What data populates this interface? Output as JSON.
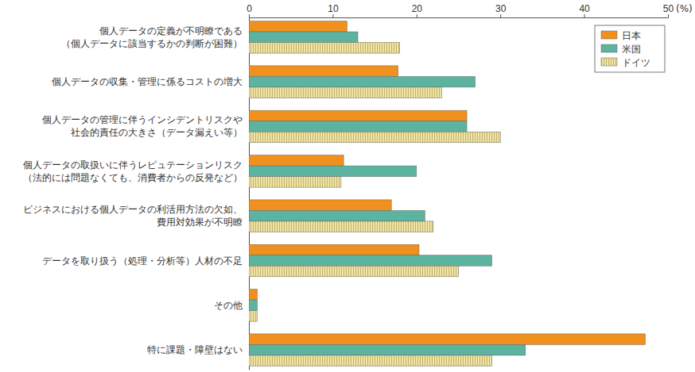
{
  "chart_data": {
    "type": "bar",
    "orientation": "horizontal",
    "x_label": "(%)",
    "categories": [
      "個人データの定義が不明瞭である\n（個人データに該当するかの判断が困難）",
      "個人データの収集・管理に係るコストの増大",
      "個人データの管理に伴うインシデントリスクや\n社会的責任の大きさ（データ漏えい等）",
      "個人データの取扱いに伴うレピュテーションリスク\n（法的には問題なくても、消費者からの反発など）",
      "ビジネスにおける個人データの利活用方法の欠如、\n費用対効果が不明瞭",
      "データを取り扱う（処理・分析等）人材の不足",
      "その他",
      "特に課題・障壁はない"
    ],
    "series": [
      {
        "name": "日本",
        "color": "#f0901e",
        "values": [
          11.7,
          17.8,
          26,
          11.3,
          17,
          20.3,
          1,
          47.3
        ]
      },
      {
        "name": "米国",
        "color": "#5bb3a0",
        "values": [
          13,
          27,
          26,
          20,
          21,
          29,
          1,
          33
        ]
      },
      {
        "name": "ドイツ",
        "color": "#efe3a6",
        "values": [
          18,
          23,
          30,
          11,
          22,
          25,
          1,
          29
        ]
      }
    ],
    "xlim": [
      0,
      50
    ],
    "xticks": [
      0,
      10,
      20,
      30,
      40,
      50
    ],
    "grid": false,
    "legend": "top right"
  }
}
